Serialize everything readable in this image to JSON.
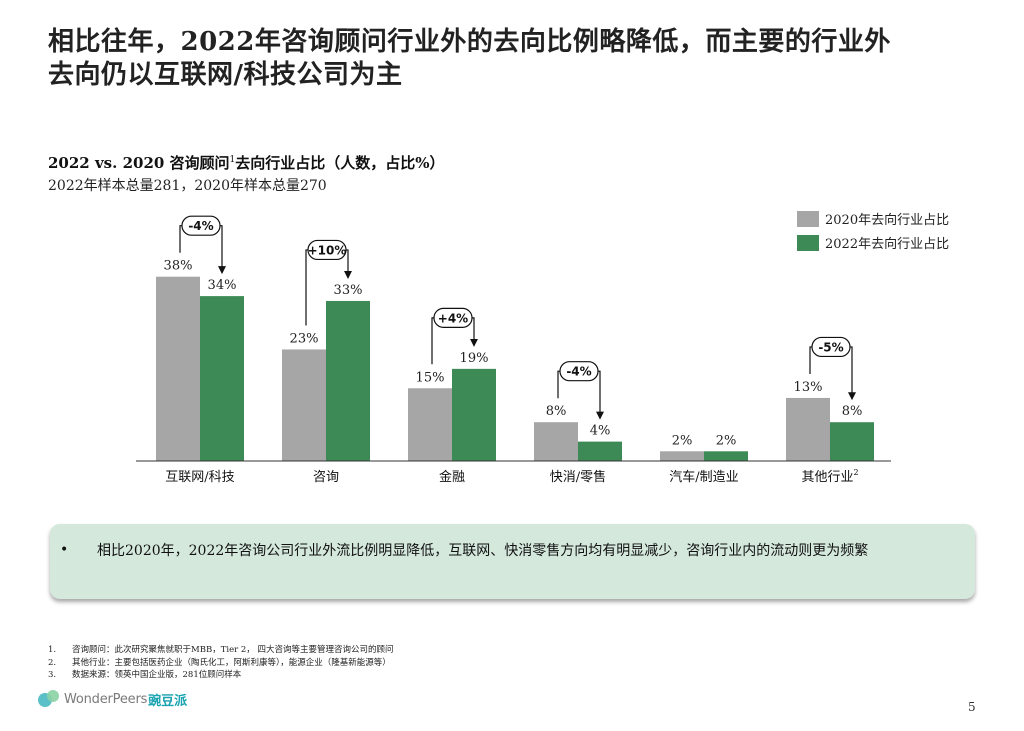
{
  "headline": {
    "line1": "相比往年，2022年咨询顾问行业外的去向比例略降低，而主要的行业外",
    "line2": "去向仍以互联网/科技公司为主"
  },
  "chart_header": {
    "title": "2022 vs. 2020 咨询顾问",
    "title_sup": "1",
    "title_rest": "去向行业占比（人数，占比%）",
    "subtitle": "2022年样本总量281，2020年样本总量270"
  },
  "chart_data": {
    "type": "bar",
    "title": "2022 vs. 2020 咨询顾问去向行业占比（人数，占比%）",
    "categories": [
      "互联网/科技",
      "咨询",
      "金融",
      "快消/零售",
      "汽车/制造业",
      "其他行业"
    ],
    "category_superscripts": [
      "",
      "",
      "",
      "",
      "",
      "2"
    ],
    "series": [
      {
        "name": "2020年去向行业占比",
        "color": "#a6a6a6",
        "values": [
          38,
          23,
          15,
          8,
          2,
          13
        ]
      },
      {
        "name": "2022年去向行业占比",
        "color": "#3e8a56",
        "values": [
          34,
          33,
          19,
          4,
          2,
          8
        ]
      }
    ],
    "value_suffix": "%",
    "changes": [
      "-4%",
      "+10%",
      "+4%",
      "-4%",
      "",
      "-5%"
    ],
    "ylim": [
      0,
      40
    ],
    "grid": false,
    "legend_position": "top-right"
  },
  "takeaway": {
    "bullet": "•",
    "text": "相比2020年，2022年咨询公司行业外流比例明显降低，互联网、快消零售方向均有明显减少，咨询行业内的流动则更为频繁"
  },
  "footnotes": [
    {
      "num": "1.",
      "text": "咨询顾问：此次研究聚焦就职于MBB，Tier 2， 四大咨询等主要管理咨询公司的顾问"
    },
    {
      "num": "2.",
      "text": "其他行业：主要包括医药企业（陶氏化工，阿斯利康等），能源企业（隆基新能源等）"
    },
    {
      "num": "3.",
      "text": "数据来源：领英中国企业版，281位顾问样本"
    }
  ],
  "logo": {
    "wordmark": "WonderPeers",
    "cn": "豌豆派"
  },
  "page_number": "5"
}
